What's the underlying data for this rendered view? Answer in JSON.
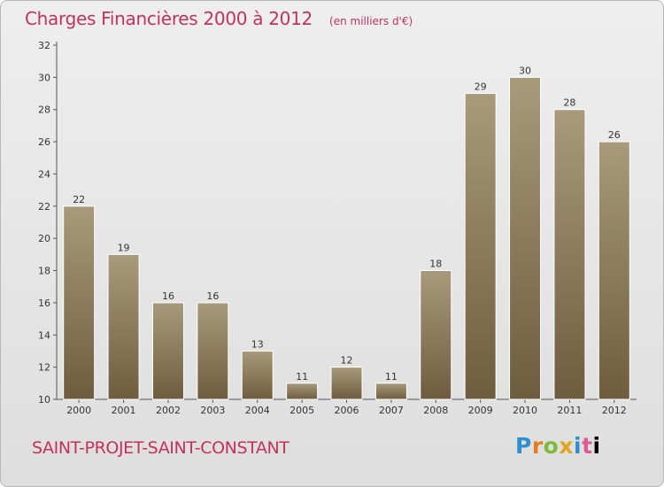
{
  "title": {
    "main": "Charges Financières 2000 à 2012",
    "sub": "(en milliers d'€)"
  },
  "commune": "SAINT-PROJET-SAINT-CONSTANT",
  "logo": {
    "text": "Proxiti",
    "letters": [
      "P",
      "r",
      "o",
      "x",
      "i",
      "t",
      "i"
    ]
  },
  "colors": {
    "title": "#c3325c",
    "bar_top": "#a89a7b",
    "bar_bottom": "#6f5c3f",
    "background": "#e6e6e6"
  },
  "chart_data": {
    "type": "bar",
    "categories": [
      "2000",
      "2001",
      "2002",
      "2003",
      "2004",
      "2005",
      "2006",
      "2007",
      "2008",
      "2009",
      "2010",
      "2011",
      "2012"
    ],
    "values": [
      22,
      19,
      16,
      16,
      13,
      11,
      12,
      11,
      18,
      29,
      30,
      28,
      26
    ],
    "data_labels": [
      "22",
      "19",
      "16",
      "16",
      "13",
      "11",
      "12",
      "11",
      "18",
      "29",
      "30",
      "28",
      "26"
    ],
    "title": "Charges Financières 2000 à 2012",
    "subtitle": "(en milliers d'€)",
    "ylim": [
      10,
      32
    ],
    "y_ticks": [
      10,
      12,
      14,
      16,
      18,
      20,
      22,
      24,
      26,
      28,
      30,
      32
    ],
    "y_tick_labels": [
      "10",
      "12",
      "14",
      "16",
      "18",
      "20",
      "22",
      "24",
      "26",
      "28",
      "30",
      "32"
    ],
    "grid": false,
    "legend": "none"
  }
}
